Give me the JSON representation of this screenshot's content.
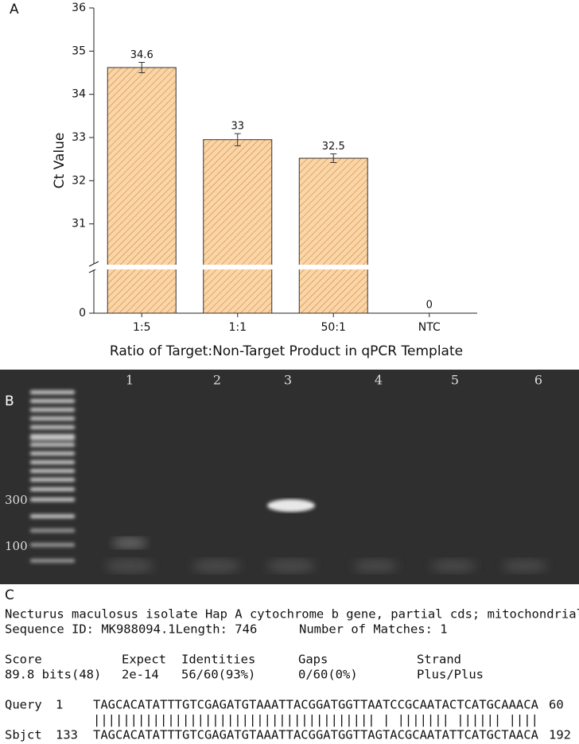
{
  "chart_data": {
    "type": "bar",
    "panel_label": "A",
    "y_label": "Ct Value",
    "x_label": "Ratio of Target:Non-Target Product in qPCR Template",
    "categories": [
      "1:5",
      "1:1",
      "50:1",
      "NTC"
    ],
    "values": [
      34.62,
      32.95,
      32.52,
      0
    ],
    "value_labels": [
      "34.6",
      "33",
      "32.5",
      "0"
    ],
    "errors": [
      0.12,
      0.14,
      0.1,
      null
    ],
    "color": "#fbd5a6",
    "hatch_color": "#c9874a",
    "ylim": [
      0,
      36
    ],
    "axis_break": [
      0,
      30
    ],
    "yticks": [
      0,
      31,
      32,
      33,
      34,
      35,
      36
    ]
  },
  "gel": {
    "panel_label": "B",
    "lane_labels": [
      "1",
      "2",
      "3",
      "4",
      "5",
      "6"
    ],
    "marker_labels": [
      "300",
      "100"
    ]
  },
  "alignment": {
    "panel_label": "C",
    "description": "Necturus maculosus isolate Hap A cytochrome b gene, partial cds; mitochondrial",
    "sequence_id": "Sequence ID: MK988094.1Length: 746",
    "matches": "Number of Matches: 1",
    "stats": {
      "headers": [
        "Score",
        "Expect",
        "Identities",
        "Gaps",
        "Strand"
      ],
      "values": [
        "89.8 bits(48)",
        "2e-14",
        "56/60(93%)",
        "0/60(0%)",
        "Plus/Plus"
      ]
    },
    "query": {
      "label": "Query",
      "start": "1",
      "sequence": "TAGCACATATTTGTCGAGATGTAAATTACGGATGGTTAATCCGCAATACTCATGCAAACA",
      "end": "60"
    },
    "match_line": "|||||||||||||||||||||||||||||||||||||| | ||||||| |||||| ||||",
    "subject": {
      "label": "Sbjct",
      "start": "133",
      "sequence": "TAGCACATATTTGTCGAGATGTAAATTACGGATGGTTAGTACGCAATATTCATGCTAACA",
      "end": "192"
    }
  }
}
